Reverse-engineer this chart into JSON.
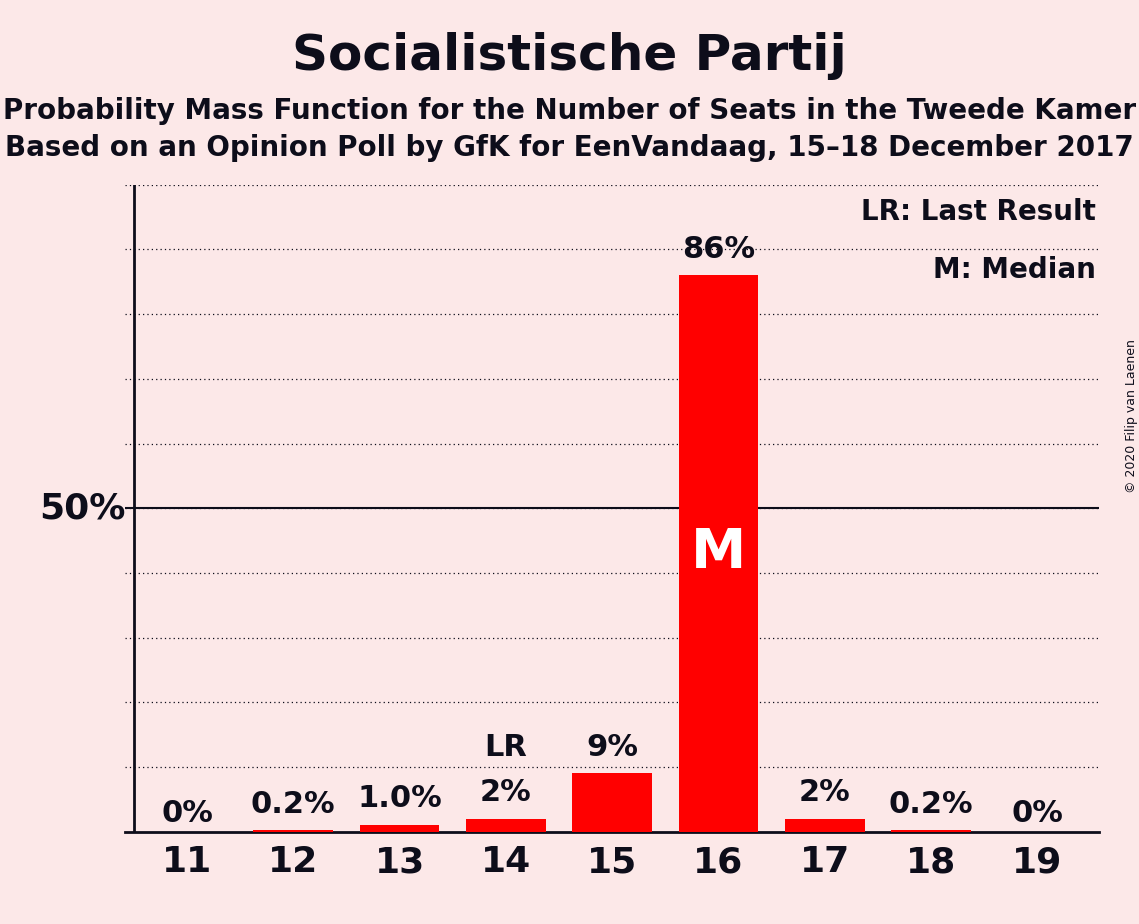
{
  "title": "Socialistische Partij",
  "subtitle1": "Probability Mass Function for the Number of Seats in the Tweede Kamer",
  "subtitle2": "Based on an Opinion Poll by GfK for EenVandaag, 15–18 December 2017",
  "copyright": "© 2020 Filip van Laenen",
  "legend_line1": "LR: Last Result",
  "legend_line2": "M: Median",
  "categories": [
    11,
    12,
    13,
    14,
    15,
    16,
    17,
    18,
    19
  ],
  "values": [
    0.0,
    0.2,
    1.0,
    2.0,
    9.0,
    86.0,
    2.0,
    0.2,
    0.0
  ],
  "bar_color": "#ff0000",
  "background_color": "#fce8e8",
  "text_color": "#0d0d1a",
  "bar_labels": [
    "0%",
    "0.2%",
    "1.0%",
    "2%",
    "9%",
    "86%",
    "2%",
    "0.2%",
    "0%"
  ],
  "last_result_seat": 14,
  "median_seat": 16,
  "ylim": [
    0,
    100
  ],
  "yticks": [
    0,
    10,
    20,
    30,
    40,
    50,
    60,
    70,
    80,
    90,
    100
  ],
  "ylabel_50": "50%",
  "grid_color": "#0d0d1a",
  "title_fontsize": 36,
  "subtitle_fontsize": 20,
  "bar_label_fontsize": 22,
  "axis_label_fontsize": 26,
  "legend_fontsize": 20,
  "m_fontsize": 40,
  "copyright_fontsize": 9
}
